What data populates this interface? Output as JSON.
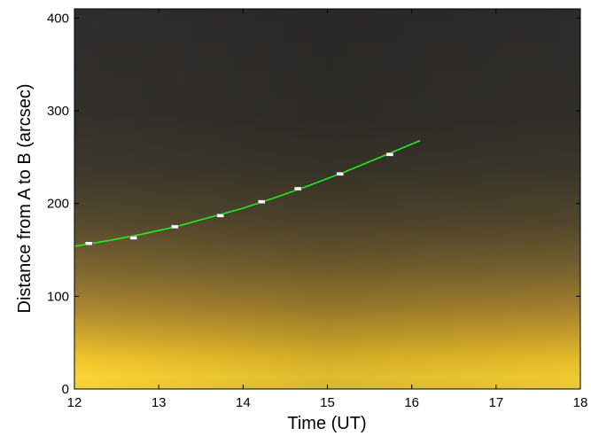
{
  "chart_data": {
    "type": "scatter",
    "title": "",
    "xlabel": "Time (UT)",
    "ylabel": "Distance from A to B (arcsec)",
    "xlim": [
      12,
      18
    ],
    "ylim": [
      0,
      410
    ],
    "xticks": [
      12,
      13,
      14,
      15,
      16,
      17,
      18
    ],
    "yticks": [
      0,
      100,
      200,
      300,
      400
    ],
    "xtick_labels": [
      "12",
      "13",
      "14",
      "15",
      "16",
      "17",
      "18"
    ],
    "ytick_labels": [
      "0",
      "100",
      "200",
      "300",
      "400"
    ],
    "grid": false,
    "legend": "none",
    "background": "time-distance image (dark at top, bright yellow toward bottom)",
    "series": [
      {
        "kind": "points",
        "marker": "white-square",
        "x": [
          12.17,
          12.7,
          13.19,
          13.73,
          14.22,
          14.65,
          15.15,
          15.74
        ],
        "y": [
          157,
          163,
          175,
          187,
          202,
          216,
          232,
          253
        ]
      },
      {
        "kind": "fit-line",
        "color": "#22ee22",
        "x": [
          12.0,
          12.4,
          12.8,
          13.2,
          13.6,
          14.0,
          14.4,
          14.8,
          15.2,
          15.6,
          16.1
        ],
        "y": [
          154,
          160,
          167,
          175,
          185,
          195,
          207,
          220,
          234,
          249,
          268
        ]
      }
    ]
  }
}
